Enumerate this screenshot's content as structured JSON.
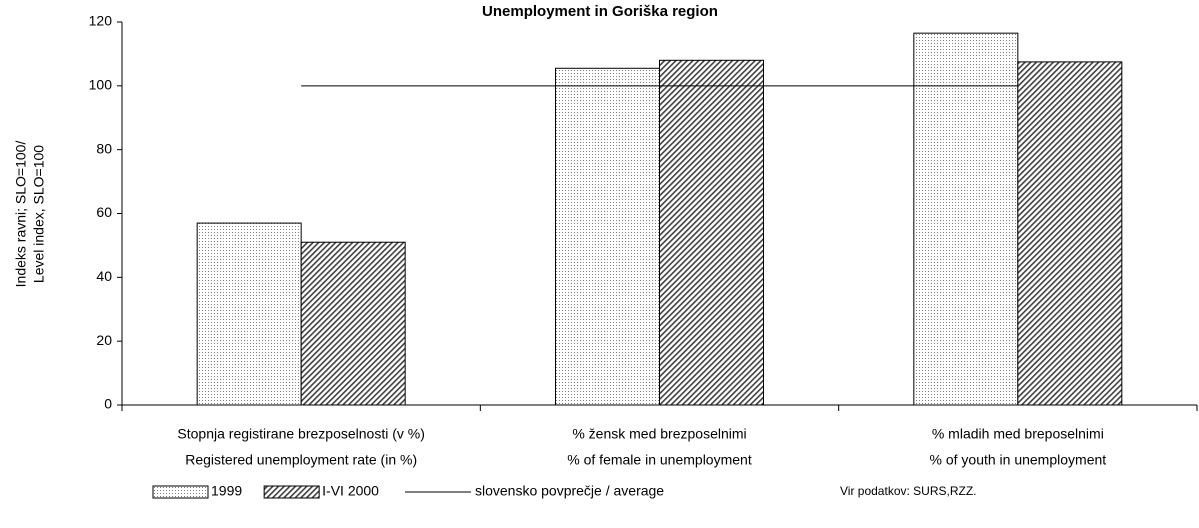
{
  "chart_data": {
    "type": "bar",
    "title": "Unemployment in Goriška region",
    "ylabel": [
      "Indeks ravni; SLO=100/",
      "Level index, SLO=100"
    ],
    "categories": [
      [
        "Stopnja registirane brezposelnosti (v %)",
        "Registered unemployment rate (in %)"
      ],
      [
        "% žensk med  brezposelnimi",
        "% of female in unemployment"
      ],
      [
        "% mladih med breposelnimi",
        "% of youth in unemployment"
      ]
    ],
    "series": [
      {
        "name": "1999",
        "color": "#808080",
        "pattern": "dots",
        "values": [
          57,
          105.5,
          116.5
        ]
      },
      {
        "name": "I-VI 2000",
        "color": "#404040",
        "pattern": "hatch",
        "values": [
          51,
          108,
          107.5
        ]
      },
      {
        "name": "slovensko povprečje / average",
        "type": "line",
        "color": "#000000",
        "values": [
          100,
          100,
          100
        ]
      }
    ],
    "ylim": [
      0,
      120
    ],
    "yticks": [
      0,
      20,
      40,
      60,
      80,
      100,
      120
    ],
    "source": "Vir podatkov: SURS,RZZ."
  }
}
